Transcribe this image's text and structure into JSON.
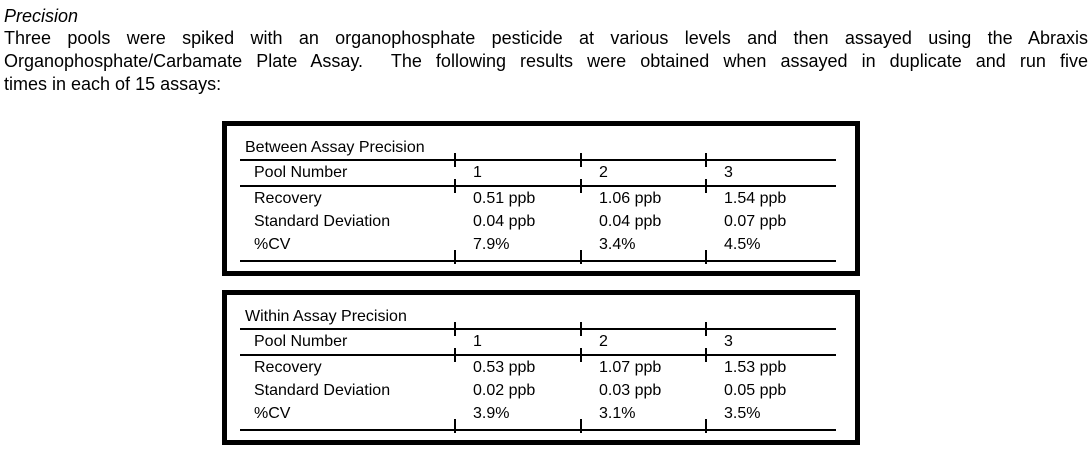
{
  "page": {
    "title": "Precision",
    "intro_lines": [
      "Three pools were spiked with an organophosphate pesticide at various levels and then assayed using the Abraxis",
      "Organophosphate/Carbamate Plate Assay.  The following results were obtained when assayed in duplicate and run five",
      "times in each of 15 assays:"
    ]
  },
  "tables": [
    {
      "title": "Between Assay Precision",
      "header_label": "Pool Number",
      "columns": [
        "1",
        "2",
        "3"
      ],
      "rows": [
        {
          "label": "Recovery",
          "values": [
            "0.51 ppb",
            "1.06 ppb",
            "1.54 ppb"
          ]
        },
        {
          "label": "Standard Deviation",
          "values": [
            "0.04 ppb",
            "0.04 ppb",
            "0.07 ppb"
          ]
        },
        {
          "label": "%CV",
          "values": [
            "7.9%",
            "3.4%",
            "4.5%"
          ]
        }
      ]
    },
    {
      "title": "Within Assay Precision",
      "header_label": "Pool Number",
      "columns": [
        "1",
        "2",
        "3"
      ],
      "rows": [
        {
          "label": "Recovery",
          "values": [
            "0.53 ppb",
            "1.07 ppb",
            "1.53 ppb"
          ]
        },
        {
          "label": "Standard Deviation",
          "values": [
            "0.02 ppb",
            "0.03 ppb",
            "0.05 ppb"
          ]
        },
        {
          "label": "%CV",
          "values": [
            "3.9%",
            "3.1%",
            "3.5%"
          ]
        }
      ]
    }
  ],
  "colors": {
    "text": "#000000",
    "background": "#ffffff",
    "border": "#000000"
  }
}
